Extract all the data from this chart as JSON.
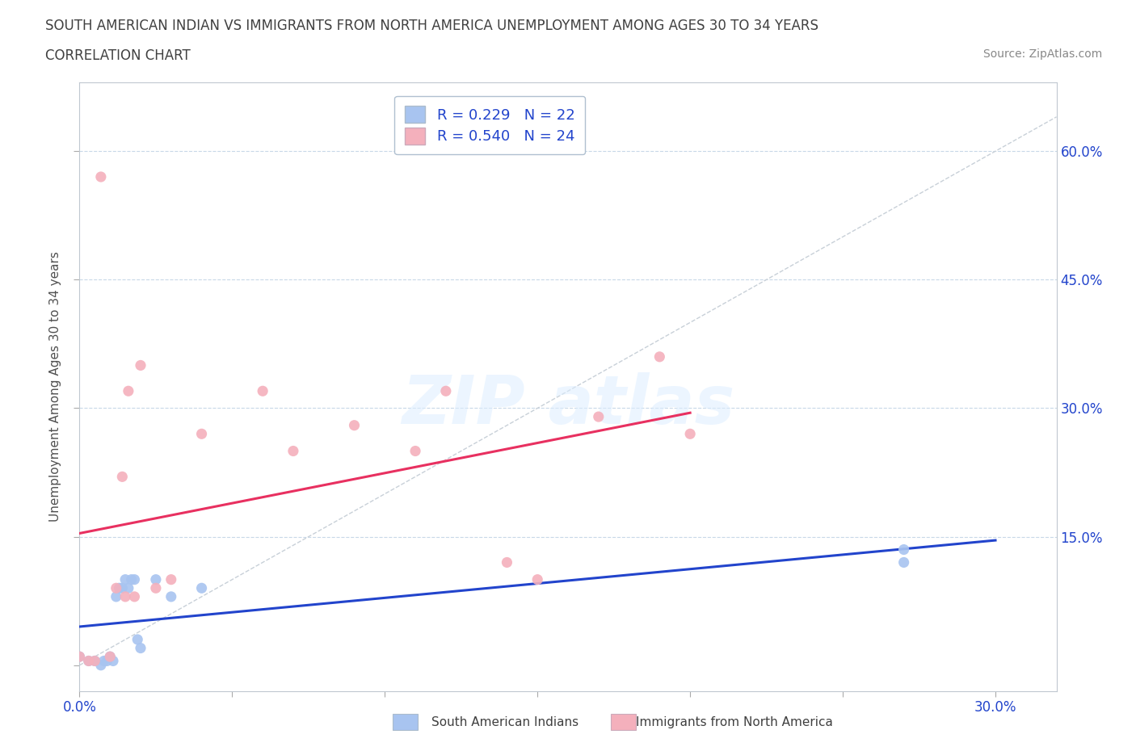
{
  "title": "SOUTH AMERICAN INDIAN VS IMMIGRANTS FROM NORTH AMERICA UNEMPLOYMENT AMONG AGES 30 TO 34 YEARS",
  "subtitle": "CORRELATION CHART",
  "source": "Source: ZipAtlas.com",
  "xlim": [
    0.0,
    0.32
  ],
  "ylim": [
    -0.03,
    0.68
  ],
  "xlabel_ticks": [
    0.0,
    0.05,
    0.1,
    0.15,
    0.2,
    0.25,
    0.3
  ],
  "ylabel_ticks": [
    0.0,
    0.15,
    0.3,
    0.45,
    0.6
  ],
  "ylabel_labels_right": [
    "",
    "15.0%",
    "30.0%",
    "45.0%",
    "60.0%"
  ],
  "blue_R": 0.229,
  "blue_N": 22,
  "pink_R": 0.54,
  "pink_N": 24,
  "blue_color": "#a8c4f0",
  "pink_color": "#f4b0bc",
  "blue_line_color": "#2244cc",
  "pink_line_color": "#e83060",
  "diag_color": "#c8d0d8",
  "grid_color": "#c8d8e8",
  "blue_x": [
    0.0,
    0.003,
    0.005,
    0.007,
    0.008,
    0.009,
    0.01,
    0.011,
    0.012,
    0.013,
    0.014,
    0.015,
    0.016,
    0.017,
    0.018,
    0.019,
    0.02,
    0.025,
    0.03,
    0.04,
    0.27,
    0.27
  ],
  "blue_y": [
    0.01,
    0.005,
    0.005,
    0.0,
    0.005,
    0.005,
    0.01,
    0.005,
    0.08,
    0.09,
    0.09,
    0.1,
    0.09,
    0.1,
    0.1,
    0.03,
    0.02,
    0.1,
    0.08,
    0.09,
    0.12,
    0.135
  ],
  "pink_x": [
    0.0,
    0.003,
    0.005,
    0.007,
    0.01,
    0.012,
    0.014,
    0.015,
    0.016,
    0.018,
    0.02,
    0.025,
    0.03,
    0.04,
    0.06,
    0.07,
    0.09,
    0.11,
    0.12,
    0.14,
    0.15,
    0.17,
    0.19,
    0.2
  ],
  "pink_y": [
    0.01,
    0.005,
    0.005,
    0.57,
    0.01,
    0.09,
    0.22,
    0.08,
    0.32,
    0.08,
    0.35,
    0.09,
    0.1,
    0.27,
    0.32,
    0.25,
    0.28,
    0.25,
    0.32,
    0.12,
    0.1,
    0.29,
    0.36,
    0.27
  ]
}
